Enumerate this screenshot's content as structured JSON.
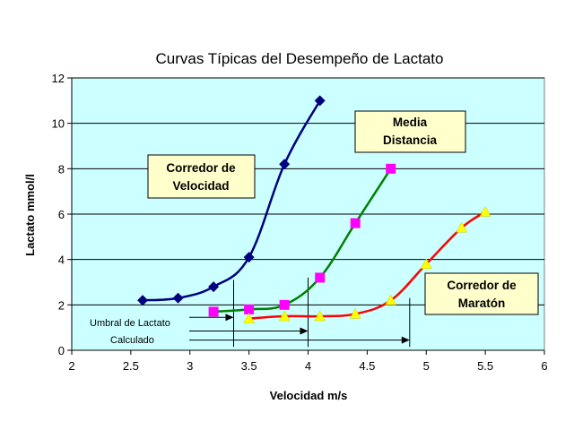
{
  "chart_data": {
    "type": "line",
    "title": "Curvas Típicas del Desempeño de Lactato",
    "xlabel": "Velocidad m/s",
    "ylabel": "Lactato mmol/l",
    "xlim": [
      2,
      6
    ],
    "ylim": [
      0,
      12
    ],
    "x_ticks": [
      2,
      2.5,
      3,
      3.5,
      4,
      4.5,
      5,
      5.5,
      6
    ],
    "x_tick_labels": [
      "2",
      "2.5",
      "3",
      "3.5",
      "4",
      "4.5",
      "5",
      "5.5",
      "6"
    ],
    "y_ticks": [
      0,
      2,
      4,
      6,
      8,
      10,
      12
    ],
    "y_tick_labels": [
      "0",
      "2",
      "4",
      "6",
      "8",
      "10",
      "12"
    ],
    "grid": "horizontal",
    "plot_background": "#ccffff",
    "series": [
      {
        "name": "Corredor de Velocidad",
        "color": "#000080",
        "marker": "diamond",
        "marker_color": "#000080",
        "x": [
          2.6,
          2.9,
          3.2,
          3.5,
          3.8,
          4.1
        ],
        "y": [
          2.2,
          2.3,
          2.8,
          4.1,
          8.2,
          11.0
        ]
      },
      {
        "name": "Media Distancia",
        "color": "#008000",
        "marker": "square",
        "marker_color": "#ff00ff",
        "x": [
          3.2,
          3.5,
          3.8,
          4.1,
          4.4,
          4.7
        ],
        "y": [
          1.7,
          1.8,
          2.0,
          3.2,
          5.6,
          8.0
        ]
      },
      {
        "name": "Corredor de Maratón",
        "color": "#ff0000",
        "marker": "triangle",
        "marker_color": "#ffff00",
        "x": [
          3.5,
          3.8,
          4.1,
          4.4,
          4.7,
          5.0,
          5.3,
          5.5
        ],
        "y": [
          1.4,
          1.5,
          1.5,
          1.6,
          2.2,
          3.8,
          5.4,
          6.1
        ]
      }
    ],
    "annotations": [
      {
        "name": "sprinter-label",
        "lines": [
          "Corredor de",
          "Velocidad"
        ]
      },
      {
        "name": "middle-distance-label",
        "lines": [
          "Media",
          "Distancia"
        ]
      },
      {
        "name": "marathon-label",
        "lines": [
          "Corredor de",
          "Maratón"
        ]
      }
    ],
    "threshold_annotation": {
      "lines": [
        "Umbral de Lactato",
        "Calculado"
      ],
      "thresholds": [
        3.37,
        4.0,
        4.86
      ]
    }
  }
}
